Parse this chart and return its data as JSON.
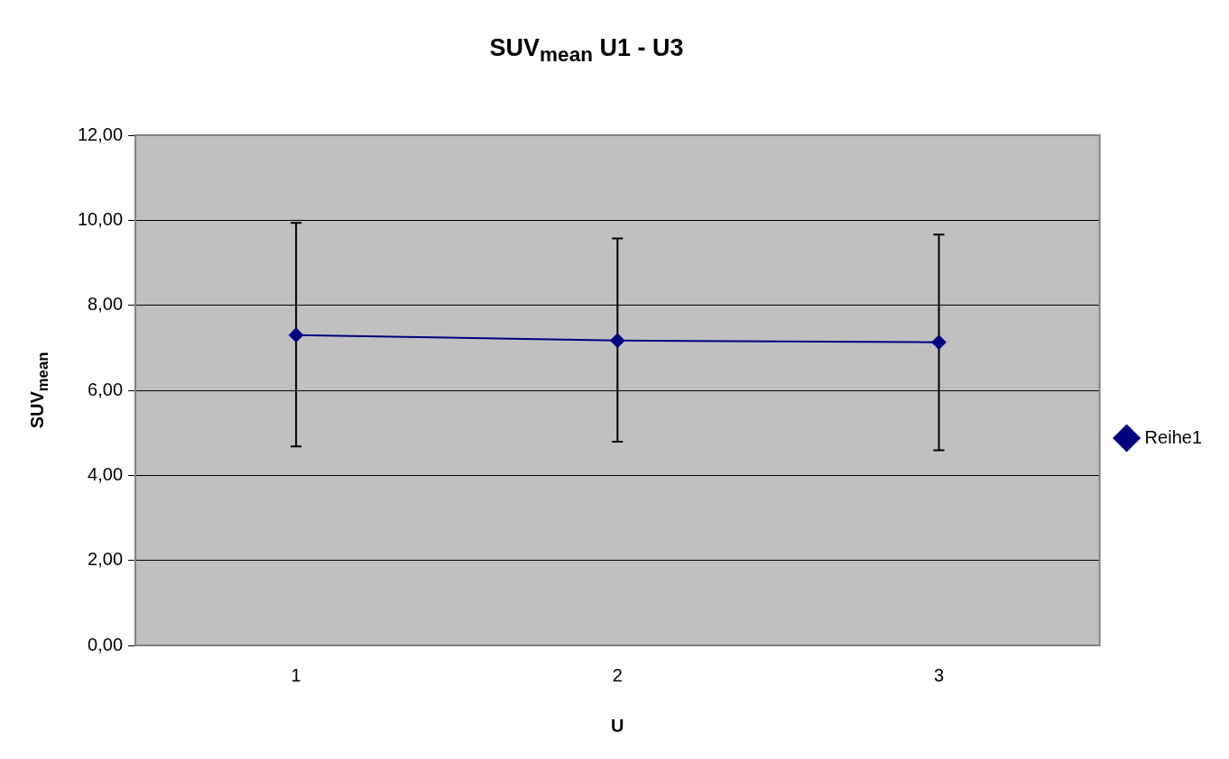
{
  "chart_data": {
    "type": "line",
    "title": "SUV$_{mean}$ U1 - U3",
    "xlabel": "U",
    "ylabel": "SUV$_{mean}$",
    "categories": [
      "1",
      "2",
      "3"
    ],
    "series": [
      {
        "name": "Reihe1",
        "color": "#000080",
        "values": [
          7.3,
          7.17,
          7.13
        ],
        "errors": [
          [
            4.68,
            9.94
          ],
          [
            4.79,
            9.57
          ],
          [
            4.59,
            9.66
          ]
        ]
      }
    ],
    "ylim": [
      0,
      12
    ],
    "yticks": [
      {
        "value": 0,
        "label": "0,00"
      },
      {
        "value": 2,
        "label": "2,00"
      },
      {
        "value": 4,
        "label": "4,00"
      },
      {
        "value": 6,
        "label": "6,00"
      },
      {
        "value": 8,
        "label": "8,00"
      },
      {
        "value": 10,
        "label": "10,00"
      },
      {
        "value": 12,
        "label": "12,00"
      }
    ],
    "grid": "y",
    "legend": "right",
    "marker": "diamond",
    "line_style": "solid"
  }
}
